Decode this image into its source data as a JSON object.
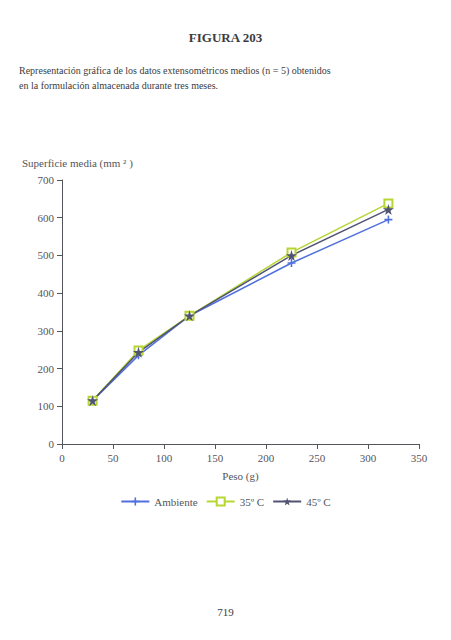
{
  "chart_data": {
    "type": "line",
    "title": "FIGURA 203",
    "subtitle": [
      "Representación gráfica de los datos extensométricos medios (n = 5) obtenidos",
      "en la formulación almacenada durante tres meses."
    ],
    "annotations": [
      "719"
    ],
    "xlabel": "Peso (g)",
    "ylabel": "Superficie media (mm ² )",
    "x": [
      30,
      75,
      125,
      225,
      320
    ],
    "series": [
      {
        "name": "Ambiente",
        "marker": "plus",
        "values": [
          115,
          235,
          340,
          480,
          595
        ]
      },
      {
        "name": "35º C",
        "marker": "square",
        "values": [
          115,
          248,
          340,
          508,
          638
        ]
      },
      {
        "name": "45º C",
        "marker": "star",
        "values": [
          115,
          243,
          340,
          500,
          622
        ]
      }
    ],
    "xlim": [
      0,
      350
    ],
    "ylim": [
      0,
      700
    ],
    "xticks": [
      0,
      50,
      100,
      150,
      200,
      250,
      300,
      350
    ],
    "yticks": [
      0,
      100,
      200,
      300,
      400,
      500,
      600,
      700
    ],
    "grid": false,
    "legend": "bottom"
  }
}
